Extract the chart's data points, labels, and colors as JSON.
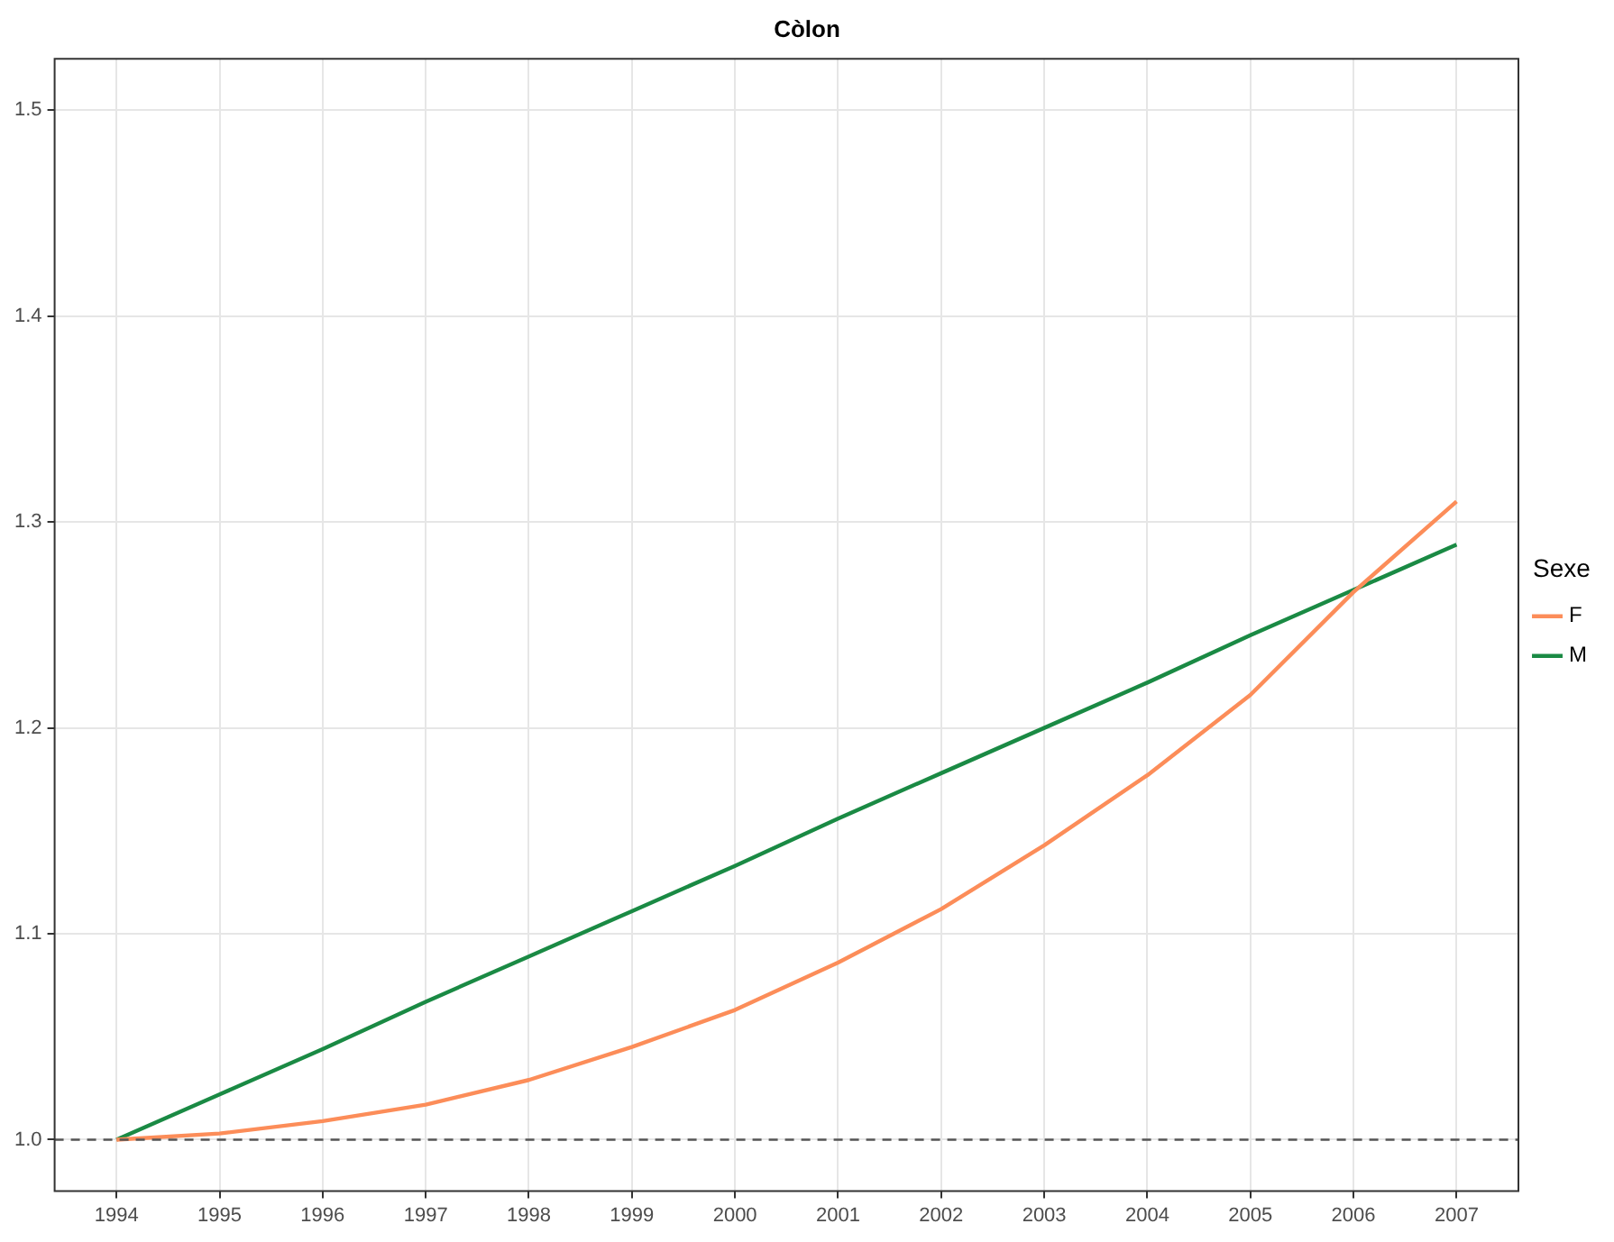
{
  "chart_data": {
    "type": "line",
    "title": "Còlon",
    "legend_title": "Sexe",
    "legend": "right",
    "grid": true,
    "marker": "none",
    "line_style": "solid",
    "x": [
      1994,
      1995,
      1996,
      1997,
      1998,
      1999,
      2000,
      2001,
      2002,
      2003,
      2004,
      2005,
      2006,
      2007
    ],
    "xlim": [
      1993.4,
      2007.6
    ],
    "xticks": [
      1994,
      1995,
      1996,
      1997,
      1998,
      1999,
      2000,
      2001,
      2002,
      2003,
      2004,
      2005,
      2006,
      2007
    ],
    "ylim": [
      0.975,
      1.525
    ],
    "yticks": [
      {
        "value": 1,
        "label": "1.0"
      },
      {
        "value": 1.1,
        "label": "1.1"
      },
      {
        "value": 1.2,
        "label": "1.2"
      },
      {
        "value": 1.3,
        "label": "1.3"
      },
      {
        "value": 1.4,
        "label": "1.4"
      },
      {
        "value": 1.5,
        "label": "1.5"
      }
    ],
    "series": [
      {
        "name": "F",
        "color": "#fc8d59",
        "values": [
          1.0,
          1.003,
          1.009,
          1.017,
          1.029,
          1.045,
          1.063,
          1.086,
          1.112,
          1.143,
          1.177,
          1.216,
          1.266,
          1.31
        ]
      },
      {
        "name": "M",
        "color": "#1a8a44",
        "values": [
          1.0,
          1.022,
          1.044,
          1.067,
          1.089,
          1.111,
          1.133,
          1.156,
          1.178,
          1.2,
          1.222,
          1.245,
          1.267,
          1.289
        ]
      }
    ],
    "ref_lines": [
      {
        "axis": "y",
        "value": 1.0,
        "color": "#555555",
        "line_style": "dashed"
      }
    ]
  }
}
